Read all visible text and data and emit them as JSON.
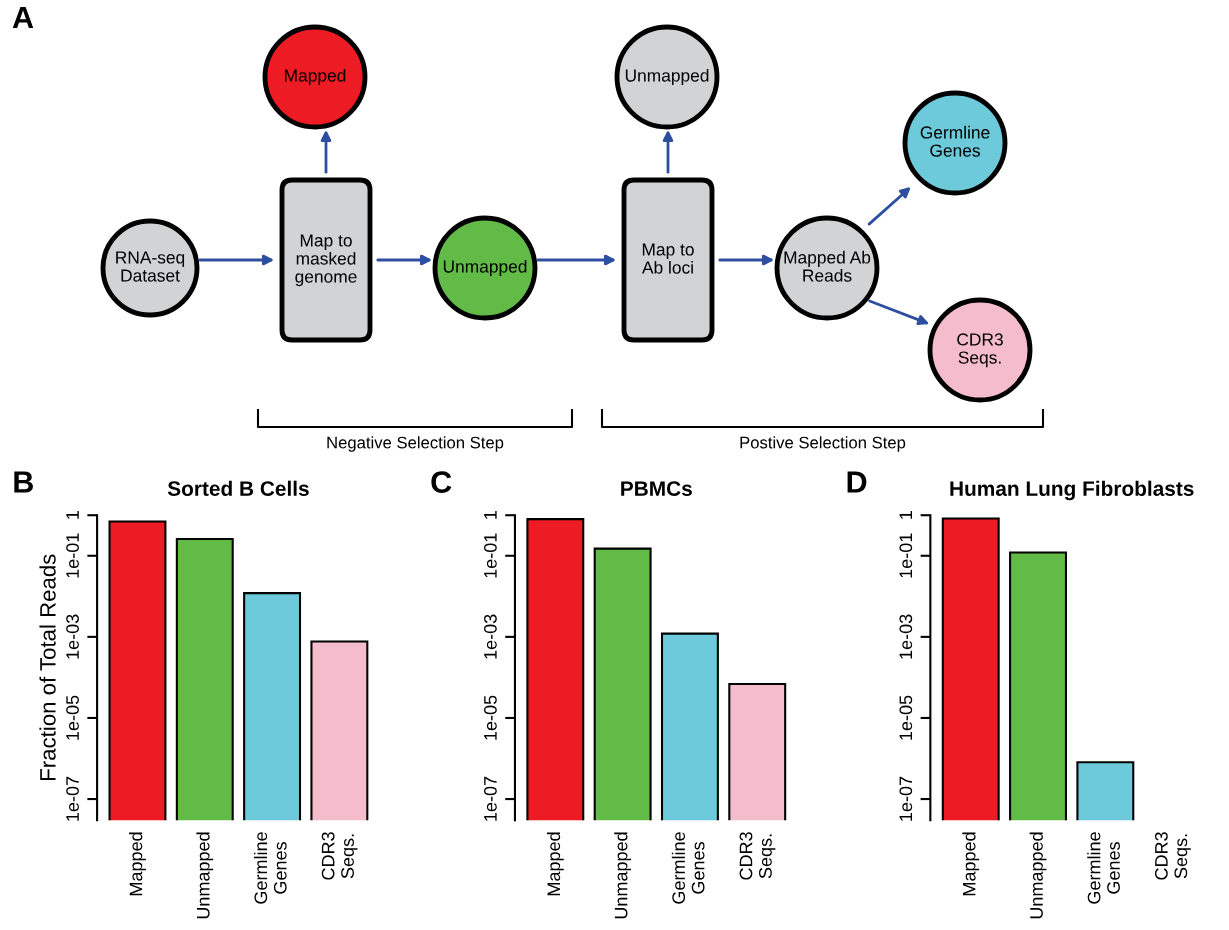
{
  "chart_data": [
    {
      "type": "other",
      "annotations": [
        "A",
        "RNA-seq\nDataset",
        "Map to\nmasked\ngenome",
        "Mapped",
        "Unmapped",
        "Map to\nAb loci",
        "Unmapped",
        "Mapped Ab\nReads",
        "Germline\nGenes",
        "CDR3\nSeqs.",
        "Negative Selection Step",
        "Postive Selection Step"
      ],
      "colors": [
        "#d1d3d4",
        "#d1d3d4",
        "#ed1c24",
        "#62bb46",
        "#d1d3d4",
        "#d1d3d4",
        "#d1d3d4",
        "#6ccadb",
        "#f5bccb"
      ]
    },
    {
      "type": "bar",
      "title": "Sorted B Cells",
      "ylabel": "Fraction of Total Reads",
      "annotations": [
        "B"
      ],
      "log": true,
      "categories": [
        "Mapped",
        "Unmapped",
        "Germline\nGenes",
        "CDR3\nSeqs."
      ],
      "values": [
        0.7,
        0.26,
        0.012,
        0.00077
      ],
      "colors": [
        "#ed1c24",
        "#62bb46",
        "#6ccadb",
        "#f5bccb"
      ],
      "ylim": [
        3e-08,
        1
      ],
      "yticks": [
        {
          "value": 1e-07,
          "label": "1e-07"
        },
        {
          "value": 1e-05,
          "label": "1e-05"
        },
        {
          "value": 0.001,
          "label": "1e-03"
        },
        {
          "value": 0.1,
          "label": "1e-01"
        },
        1
      ]
    },
    {
      "type": "bar",
      "title": "PBMCs",
      "annotations": [
        "C"
      ],
      "log": true,
      "categories": [
        "Mapped",
        "Unmapped",
        "Germline\nGenes",
        "CDR3\nSeqs."
      ],
      "values": [
        0.8,
        0.15,
        0.0012,
        6.9e-05
      ],
      "colors": [
        "#ed1c24",
        "#62bb46",
        "#6ccadb",
        "#f5bccb"
      ],
      "ylim": [
        3e-08,
        1
      ],
      "yticks": [
        {
          "value": 1e-07,
          "label": "1e-07"
        },
        {
          "value": 1e-05,
          "label": "1e-05"
        },
        {
          "value": 0.001,
          "label": "1e-03"
        },
        {
          "value": 0.1,
          "label": "1e-01"
        },
        1
      ]
    },
    {
      "type": "bar",
      "title": "Human Lung Fibroblasts",
      "annotations": [
        "D"
      ],
      "log": true,
      "categories": [
        "Mapped",
        "Unmapped",
        "Germline\nGenes",
        "CDR3\nSeqs."
      ],
      "values": [
        0.83,
        0.12,
        8.1e-07,
        null
      ],
      "colors": [
        "#ed1c24",
        "#62bb46",
        "#6ccadb",
        "#f5bccb"
      ],
      "ylim": [
        3e-08,
        1
      ],
      "yticks": [
        {
          "value": 1e-07,
          "label": "1e-07"
        },
        {
          "value": 1e-05,
          "label": "1e-05"
        },
        {
          "value": 0.001,
          "label": "1e-03"
        },
        {
          "value": 0.1,
          "label": "1e-01"
        },
        1
      ]
    }
  ]
}
